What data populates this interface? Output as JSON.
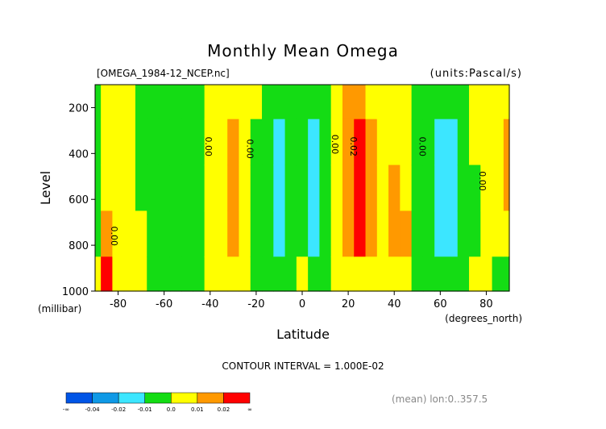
{
  "chart_data": {
    "type": "heatmap",
    "title": "Monthly Mean Omega",
    "subtitle_left": "[OMEGA_1984-12_NCEP.nc]",
    "subtitle_right": "(units:Pascal/s)",
    "xlabel": "Latitude",
    "xunit": "(degrees_north)",
    "ylabel": "Level",
    "yunit": "(millibar)",
    "xlim": [
      -90,
      90
    ],
    "ylim": [
      1000,
      100
    ],
    "x_ticks": [
      "-80",
      "-60",
      "-40",
      "-20",
      "0",
      "20",
      "40",
      "60",
      "80"
    ],
    "y_ticks": [
      "200",
      "400",
      "600",
      "800",
      "1000"
    ],
    "contour_interval_text": "CONTOUR INTERVAL = 1.000E-02",
    "footer_text": "(mean) lon:0..357.5",
    "contour_labels": [
      {
        "text": "0.00",
        "lat": -83,
        "level": 760
      },
      {
        "text": "0.00",
        "lat": -42,
        "level": 370
      },
      {
        "text": "0.00",
        "lat": -24,
        "level": 380
      },
      {
        "text": "0.00",
        "lat": 13,
        "level": 360
      },
      {
        "text": "0.02",
        "lat": 21,
        "level": 370
      },
      {
        "text": "0.00",
        "lat": 51,
        "level": 370
      },
      {
        "text": "0.00",
        "lat": 77,
        "level": 520
      }
    ],
    "colorbar": {
      "labels": [
        "-∞",
        "-0.04",
        "-0.02",
        "-0.01",
        "0.0",
        "0.01",
        "0.02",
        "∞"
      ],
      "colors": [
        "#0055e6",
        "#0f99e6",
        "#3ce6ff",
        "#14dc14",
        "#ffff00",
        "#ff9900",
        "#ff0000"
      ]
    },
    "bands": [
      {
        "lat": -90.0,
        "s": [
          0.5,
          0.3,
          0.2,
          0.05,
          0.02
        ],
        "v": [
          -0.005,
          -0.005,
          -0.005,
          -0.005,
          0.003
        ]
      },
      {
        "lat": -85.0,
        "s": [
          0.5,
          0.45,
          0.4,
          0.35,
          0.3
        ],
        "v": [
          0.005,
          0.005,
          0.005,
          0.012,
          0.025
        ]
      },
      {
        "lat": -80.0,
        "s": [
          0.3,
          0.4,
          0.45,
          0.45,
          0.4
        ],
        "v": [
          0.005,
          0.005,
          0.006,
          0.008,
          0.008
        ]
      },
      {
        "lat": -75.0,
        "s": [
          0.3,
          0.4,
          0.45,
          0.45,
          0.4
        ],
        "v": [
          0.005,
          0.005,
          0.004,
          0.003,
          0.003
        ]
      },
      {
        "lat": -70.0,
        "s": [
          0.3,
          0.3,
          0.3,
          0.3,
          0.3
        ],
        "v": [
          -0.005,
          -0.005,
          -0.005,
          0.004,
          0.003
        ]
      },
      {
        "lat": -65.0,
        "s": [
          0.3,
          0.3,
          0.3,
          0.3,
          0.3
        ],
        "v": [
          -0.005,
          -0.005,
          -0.005,
          -0.005,
          -0.004
        ]
      },
      {
        "lat": -60.0,
        "s": [
          0.3,
          0.3,
          0.3,
          0.3,
          0.3
        ],
        "v": [
          -0.005,
          -0.005,
          -0.005,
          -0.005,
          -0.005
        ]
      },
      {
        "lat": -55.0,
        "s": [
          0.3,
          0.3,
          0.3,
          0.3,
          0.3
        ],
        "v": [
          -0.005,
          -0.005,
          -0.005,
          -0.005,
          -0.005
        ]
      },
      {
        "lat": -50.0,
        "s": [
          0.3,
          0.3,
          0.3,
          0.3,
          0.3
        ],
        "v": [
          -0.005,
          -0.005,
          -0.005,
          -0.005,
          -0.005
        ]
      },
      {
        "lat": -45.0,
        "s": [
          0.3,
          0.3,
          0.3,
          0.3,
          0.3
        ],
        "v": [
          -0.004,
          -0.004,
          -0.004,
          -0.004,
          -0.004
        ]
      },
      {
        "lat": -40.0,
        "s": [
          0.3,
          0.3,
          0.3,
          0.3,
          0.3
        ],
        "v": [
          0.003,
          0.003,
          0.003,
          0.003,
          0.003
        ]
      },
      {
        "lat": -35.0,
        "s": [
          0.3,
          0.3,
          0.3,
          0.3,
          0.3
        ],
        "v": [
          0.005,
          0.006,
          0.007,
          0.007,
          0.004
        ]
      },
      {
        "lat": -30.0,
        "s": [
          0.3,
          0.3,
          0.3,
          0.3,
          0.3
        ],
        "v": [
          0.005,
          0.012,
          0.013,
          0.012,
          0.005
        ]
      },
      {
        "lat": -25.0,
        "s": [
          0.3,
          0.3,
          0.3,
          0.3,
          0.3
        ],
        "v": [
          0.004,
          0.005,
          0.006,
          0.005,
          0.004
        ]
      },
      {
        "lat": -20.0,
        "s": [
          0.3,
          0.3,
          0.3,
          0.3,
          0.3
        ],
        "v": [
          0.003,
          -0.003,
          -0.003,
          -0.003,
          -0.003
        ]
      },
      {
        "lat": -15.0,
        "s": [
          0.3,
          0.3,
          0.3,
          0.3,
          0.3
        ],
        "v": [
          -0.005,
          -0.005,
          -0.005,
          -0.005,
          -0.005
        ]
      },
      {
        "lat": -10.0,
        "s": [
          0.3,
          0.3,
          0.3,
          0.3,
          0.3
        ],
        "v": [
          -0.005,
          -0.012,
          -0.013,
          -0.012,
          -0.005
        ]
      },
      {
        "lat": -5.0,
        "s": [
          0.3,
          0.3,
          0.3,
          0.3,
          0.3
        ],
        "v": [
          -0.005,
          -0.006,
          -0.006,
          -0.006,
          -0.004
        ]
      },
      {
        "lat": 0.0,
        "s": [
          0.3,
          0.3,
          0.3,
          0.3,
          0.3
        ],
        "v": [
          -0.004,
          -0.004,
          -0.005,
          -0.005,
          0.003
        ]
      },
      {
        "lat": 5.0,
        "s": [
          0.3,
          0.3,
          0.3,
          0.3,
          0.3
        ],
        "v": [
          -0.005,
          -0.012,
          -0.013,
          -0.02,
          -0.004
        ]
      },
      {
        "lat": 10.0,
        "s": [
          0.3,
          0.3,
          0.3,
          0.3,
          0.3
        ],
        "v": [
          -0.005,
          -0.006,
          -0.006,
          -0.006,
          -0.004
        ]
      },
      {
        "lat": 15.0,
        "s": [
          0.3,
          0.3,
          0.3,
          0.3,
          0.3
        ],
        "v": [
          0.003,
          0.003,
          0.003,
          0.003,
          0.003
        ]
      },
      {
        "lat": 20.0,
        "s": [
          0.3,
          0.3,
          0.3,
          0.3,
          0.3
        ],
        "v": [
          0.012,
          0.013,
          0.013,
          0.013,
          0.004
        ]
      },
      {
        "lat": 25.0,
        "s": [
          0.3,
          0.3,
          0.3,
          0.3,
          0.3
        ],
        "v": [
          0.013,
          0.025,
          0.025,
          0.022,
          0.005
        ]
      },
      {
        "lat": 30.0,
        "s": [
          0.3,
          0.3,
          0.3,
          0.3,
          0.3
        ],
        "v": [
          0.005,
          0.012,
          0.013,
          0.013,
          0.005
        ]
      },
      {
        "lat": 35.0,
        "s": [
          0.3,
          0.3,
          0.3,
          0.3,
          0.3
        ],
        "v": [
          0.004,
          0.005,
          0.006,
          0.006,
          0.004
        ]
      },
      {
        "lat": 40.0,
        "s": [
          0.3,
          0.3,
          0.3,
          0.3,
          0.3
        ],
        "v": [
          0.004,
          0.005,
          0.012,
          0.013,
          0.004
        ]
      },
      {
        "lat": 45.0,
        "s": [
          0.3,
          0.3,
          0.3,
          0.3,
          0.3
        ],
        "v": [
          0.003,
          0.004,
          0.005,
          0.012,
          0.004
        ]
      },
      {
        "lat": 50.0,
        "s": [
          0.3,
          0.3,
          0.3,
          0.3,
          0.3
        ],
        "v": [
          -0.004,
          -0.004,
          -0.004,
          -0.004,
          -0.004
        ]
      },
      {
        "lat": 55.0,
        "s": [
          0.3,
          0.3,
          0.3,
          0.3,
          0.3
        ],
        "v": [
          -0.005,
          -0.005,
          -0.005,
          -0.005,
          -0.005
        ]
      },
      {
        "lat": 60.0,
        "s": [
          0.3,
          0.3,
          0.3,
          0.3,
          0.3
        ],
        "v": [
          -0.005,
          -0.012,
          -0.013,
          -0.012,
          -0.005
        ]
      },
      {
        "lat": 65.0,
        "s": [
          0.3,
          0.3,
          0.3,
          0.3,
          0.3
        ],
        "v": [
          -0.005,
          -0.012,
          -0.013,
          -0.012,
          -0.005
        ]
      },
      {
        "lat": 70.0,
        "s": [
          0.3,
          0.3,
          0.3,
          0.3,
          0.3
        ],
        "v": [
          -0.005,
          -0.005,
          -0.005,
          -0.005,
          -0.004
        ]
      },
      {
        "lat": 75.0,
        "s": [
          0.3,
          0.3,
          0.3,
          0.3,
          0.3
        ],
        "v": [
          0.003,
          0.003,
          -0.003,
          -0.003,
          0.003
        ]
      },
      {
        "lat": 80.0,
        "s": [
          0.3,
          0.3,
          0.3,
          0.3,
          0.3
        ],
        "v": [
          0.004,
          0.004,
          0.004,
          0.004,
          0.004
        ]
      },
      {
        "lat": 85.0,
        "s": [
          0.3,
          0.3,
          0.3,
          0.3,
          0.3
        ],
        "v": [
          0.004,
          0.004,
          0.004,
          0.004,
          -0.004
        ]
      },
      {
        "lat": 90.0,
        "s": [
          0.3,
          0.3,
          0.3,
          0.3,
          0.3
        ],
        "v": [
          0.004,
          0.012,
          0.012,
          0.004,
          -0.004
        ]
      }
    ]
  }
}
